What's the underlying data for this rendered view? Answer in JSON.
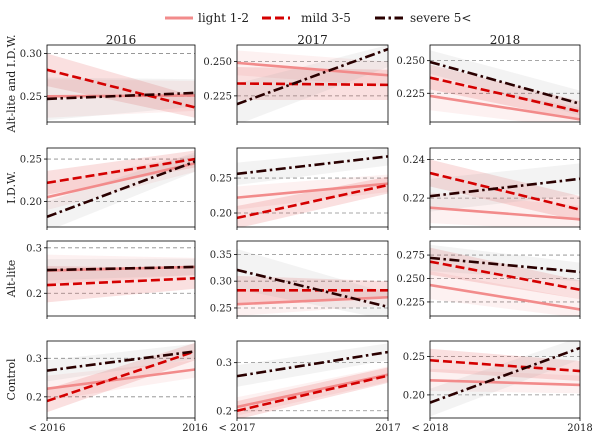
{
  "chart_data": {
    "type": "line",
    "legend": {
      "placement": "top-center",
      "entries": [
        {
          "name": "light 1-2",
          "color": "#f28b8b",
          "dash": "solid"
        },
        {
          "name": "mild 3-5",
          "color": "#d40000",
          "dash": "dashed"
        },
        {
          "name": "severe 5<",
          "color": "#2a0000",
          "dash": "dashdot"
        }
      ]
    },
    "column_titles": [
      "2016",
      "2017",
      "2018"
    ],
    "row_labels": [
      "Alt-lite and I.D.W.",
      "I.D.W.",
      "Alt-lite",
      "Control"
    ],
    "x_tick_labels": [
      [
        "< 2016",
        "2016"
      ],
      [
        "< 2017",
        "2017"
      ],
      [
        "< 2018",
        "2018"
      ]
    ],
    "grid": "horizontal dashed at y ticks",
    "panels": [
      {
        "row": 0,
        "col": 0,
        "ylim": [
          0.22,
          0.31
        ],
        "yticks": [
          0.25,
          0.3
        ],
        "ytick_labels": [
          "0.25",
          "0.30"
        ],
        "series": [
          {
            "series": "light 1-2",
            "values": [
              0.25,
              0.251
            ],
            "band": [
              [
                0.225,
                0.27
              ],
              [
                0.233,
                0.268
              ]
            ]
          },
          {
            "series": "mild 3-5",
            "values": [
              0.281,
              0.237
            ],
            "band": [
              [
                0.262,
                0.3
              ],
              [
                0.225,
                0.25
              ]
            ]
          },
          {
            "series": "severe 5<",
            "values": [
              0.247,
              0.254
            ],
            "band": [
              [
                0.222,
                0.272
              ],
              [
                0.238,
                0.27
              ]
            ]
          }
        ]
      },
      {
        "row": 0,
        "col": 1,
        "ylim": [
          0.206,
          0.262
        ],
        "yticks": [
          0.225,
          0.25
        ],
        "ytick_labels": [
          "0.225",
          "0.250"
        ],
        "series": [
          {
            "series": "light 1-2",
            "values": [
              0.249,
              0.24
            ],
            "band": [
              [
                0.24,
                0.258
              ],
              [
                0.232,
                0.25
              ]
            ]
          },
          {
            "series": "mild 3-5",
            "values": [
              0.234,
              0.233
            ],
            "band": [
              [
                0.222,
                0.246
              ],
              [
                0.222,
                0.244
              ]
            ]
          },
          {
            "series": "severe 5<",
            "values": [
              0.219,
              0.259
            ],
            "band": [
              [
                0.204,
                0.234
              ],
              [
                0.246,
                0.262
              ]
            ]
          }
        ]
      },
      {
        "row": 0,
        "col": 2,
        "ylim": [
          0.203,
          0.262
        ],
        "yticks": [
          0.225,
          0.25
        ],
        "ytick_labels": [
          "0.225",
          "0.250"
        ],
        "series": [
          {
            "series": "light 1-2",
            "values": [
              0.223,
              0.205
            ],
            "band": [
              [
                0.212,
                0.236
              ],
              [
                0.198,
                0.214
              ]
            ]
          },
          {
            "series": "mild 3-5",
            "values": [
              0.237,
              0.211
            ],
            "band": [
              [
                0.228,
                0.247
              ],
              [
                0.204,
                0.219
              ]
            ]
          },
          {
            "series": "severe 5<",
            "values": [
              0.249,
              0.217
            ],
            "band": [
              [
                0.24,
                0.258
              ],
              [
                0.208,
                0.227
              ]
            ]
          }
        ]
      },
      {
        "row": 1,
        "col": 0,
        "ylim": [
          0.17,
          0.263
        ],
        "yticks": [
          0.2,
          0.25
        ],
        "ytick_labels": [
          "0.20",
          "0.25"
        ],
        "series": [
          {
            "series": "light 1-2",
            "values": [
              0.205,
              0.245
            ],
            "band": [
              [
                0.19,
                0.222
              ],
              [
                0.235,
                0.255
              ]
            ]
          },
          {
            "series": "mild 3-5",
            "values": [
              0.222,
              0.25
            ],
            "band": [
              [
                0.208,
                0.236
              ],
              [
                0.24,
                0.26
              ]
            ]
          },
          {
            "series": "severe 5<",
            "values": [
              0.182,
              0.247
            ],
            "band": [
              [
                0.165,
                0.2
              ],
              [
                0.235,
                0.258
              ]
            ]
          }
        ]
      },
      {
        "row": 1,
        "col": 1,
        "ylim": [
          0.18,
          0.293
        ],
        "yticks": [
          0.2,
          0.25
        ],
        "ytick_labels": [
          "0.20",
          "0.25"
        ],
        "series": [
          {
            "series": "light 1-2",
            "values": [
              0.222,
              0.242
            ],
            "band": [
              [
                0.205,
                0.238
              ],
              [
                0.23,
                0.255
              ]
            ]
          },
          {
            "series": "mild 3-5",
            "values": [
              0.193,
              0.24
            ],
            "band": [
              [
                0.178,
                0.21
              ],
              [
                0.228,
                0.252
              ]
            ]
          },
          {
            "series": "severe 5<",
            "values": [
              0.256,
              0.281
            ],
            "band": [
              [
                0.24,
                0.272
              ],
              [
                0.268,
                0.293
              ]
            ]
          }
        ]
      },
      {
        "row": 1,
        "col": 2,
        "ylim": [
          0.205,
          0.246
        ],
        "yticks": [
          0.22,
          0.24
        ],
        "ytick_labels": [
          "0.22",
          "0.24"
        ],
        "series": [
          {
            "series": "light 1-2",
            "values": [
              0.215,
              0.209
            ],
            "band": [
              [
                0.207,
                0.223
              ],
              [
                0.203,
                0.216
              ]
            ]
          },
          {
            "series": "mild 3-5",
            "values": [
              0.233,
              0.214
            ],
            "band": [
              [
                0.226,
                0.24
              ],
              [
                0.208,
                0.221
              ]
            ]
          },
          {
            "series": "severe 5<",
            "values": [
              0.221,
              0.23
            ],
            "band": [
              [
                0.213,
                0.23
              ],
              [
                0.222,
                0.238
              ]
            ]
          }
        ]
      },
      {
        "row": 2,
        "col": 0,
        "ylim": [
          0.15,
          0.315
        ],
        "yticks": [
          0.2,
          0.3
        ],
        "ytick_labels": [
          "0.2",
          "0.3"
        ],
        "series": [
          {
            "series": "light 1-2",
            "values": [
              0.25,
              0.258
            ],
            "band": [
              [
                0.22,
                0.285
              ],
              [
                0.24,
                0.278
              ]
            ]
          },
          {
            "series": "mild 3-5",
            "values": [
              0.218,
              0.233
            ],
            "band": [
              [
                0.18,
                0.26
              ],
              [
                0.21,
                0.255
              ]
            ]
          },
          {
            "series": "severe 5<",
            "values": [
              0.251,
              0.258
            ],
            "band": [
              [
                0.228,
                0.275
              ],
              [
                0.24,
                0.276
              ]
            ]
          }
        ]
      },
      {
        "row": 2,
        "col": 1,
        "ylim": [
          0.235,
          0.375
        ],
        "yticks": [
          0.25,
          0.3,
          0.35
        ],
        "ytick_labels": [
          "0.25",
          "0.30",
          "0.35"
        ],
        "series": [
          {
            "series": "light 1-2",
            "values": [
              0.257,
              0.27
            ],
            "band": [
              [
                0.235,
                0.282
              ],
              [
                0.255,
                0.285
              ]
            ]
          },
          {
            "series": "mild 3-5",
            "values": [
              0.283,
              0.283
            ],
            "band": [
              [
                0.258,
                0.31
              ],
              [
                0.268,
                0.3
              ]
            ]
          },
          {
            "series": "severe 5<",
            "values": [
              0.321,
              0.252
            ],
            "band": [
              [
                0.285,
                0.36
              ],
              [
                0.228,
                0.278
              ]
            ]
          }
        ]
      },
      {
        "row": 2,
        "col": 2,
        "ylim": [
          0.21,
          0.29
        ],
        "yticks": [
          0.225,
          0.25,
          0.275
        ],
        "ytick_labels": [
          "0.225",
          "0.250",
          "0.275"
        ],
        "series": [
          {
            "series": "light 1-2",
            "values": [
              0.243,
              0.217
            ],
            "band": [
              [
                0.228,
                0.258
              ],
              [
                0.208,
                0.228
              ]
            ]
          },
          {
            "series": "mild 3-5",
            "values": [
              0.268,
              0.238
            ],
            "band": [
              [
                0.254,
                0.283
              ],
              [
                0.228,
                0.248
              ]
            ]
          },
          {
            "series": "severe 5<",
            "values": [
              0.272,
              0.257
            ],
            "band": [
              [
                0.258,
                0.286
              ],
              [
                0.247,
                0.267
              ]
            ]
          }
        ]
      },
      {
        "row": 3,
        "col": 0,
        "ylim": [
          0.145,
          0.345
        ],
        "yticks": [
          0.2,
          0.3
        ],
        "ytick_labels": [
          "0.2",
          "0.3"
        ],
        "series": [
          {
            "series": "light 1-2",
            "values": [
              0.221,
              0.271
            ],
            "band": [
              [
                0.19,
                0.255
              ],
              [
                0.25,
                0.295
              ]
            ]
          },
          {
            "series": "mild 3-5",
            "values": [
              0.189,
              0.318
            ],
            "band": [
              [
                0.16,
                0.22
              ],
              [
                0.295,
                0.34
              ]
            ]
          },
          {
            "series": "severe 5<",
            "values": [
              0.268,
              0.318
            ],
            "band": [
              [
                0.24,
                0.295
              ],
              [
                0.298,
                0.338
              ]
            ]
          }
        ]
      },
      {
        "row": 3,
        "col": 1,
        "ylim": [
          0.185,
          0.345
        ],
        "yticks": [
          0.2,
          0.3
        ],
        "ytick_labels": [
          "0.2",
          "0.3"
        ],
        "series": [
          {
            "series": "light 1-2",
            "values": [
              0.208,
              0.275
            ],
            "band": [
              [
                0.19,
                0.228
              ],
              [
                0.26,
                0.292
              ]
            ]
          },
          {
            "series": "mild 3-5",
            "values": [
              0.2,
              0.273
            ],
            "band": [
              [
                0.182,
                0.22
              ],
              [
                0.258,
                0.29
              ]
            ]
          },
          {
            "series": "severe 5<",
            "values": [
              0.272,
              0.322
            ],
            "band": [
              [
                0.25,
                0.295
              ],
              [
                0.305,
                0.34
              ]
            ]
          }
        ]
      },
      {
        "row": 3,
        "col": 2,
        "ylim": [
          0.17,
          0.27
        ],
        "yticks": [
          0.2,
          0.25
        ],
        "ytick_labels": [
          "0.20",
          "0.25"
        ],
        "series": [
          {
            "series": "light 1-2",
            "values": [
              0.219,
              0.213
            ],
            "band": [
              [
                0.205,
                0.234
              ],
              [
                0.202,
                0.225
              ]
            ]
          },
          {
            "series": "mild 3-5",
            "values": [
              0.245,
              0.231
            ],
            "band": [
              [
                0.23,
                0.26
              ],
              [
                0.218,
                0.244
              ]
            ]
          },
          {
            "series": "severe 5<",
            "values": [
              0.19,
              0.261
            ],
            "band": [
              [
                0.172,
                0.208
              ],
              [
                0.246,
                0.275
              ]
            ]
          }
        ]
      }
    ]
  }
}
